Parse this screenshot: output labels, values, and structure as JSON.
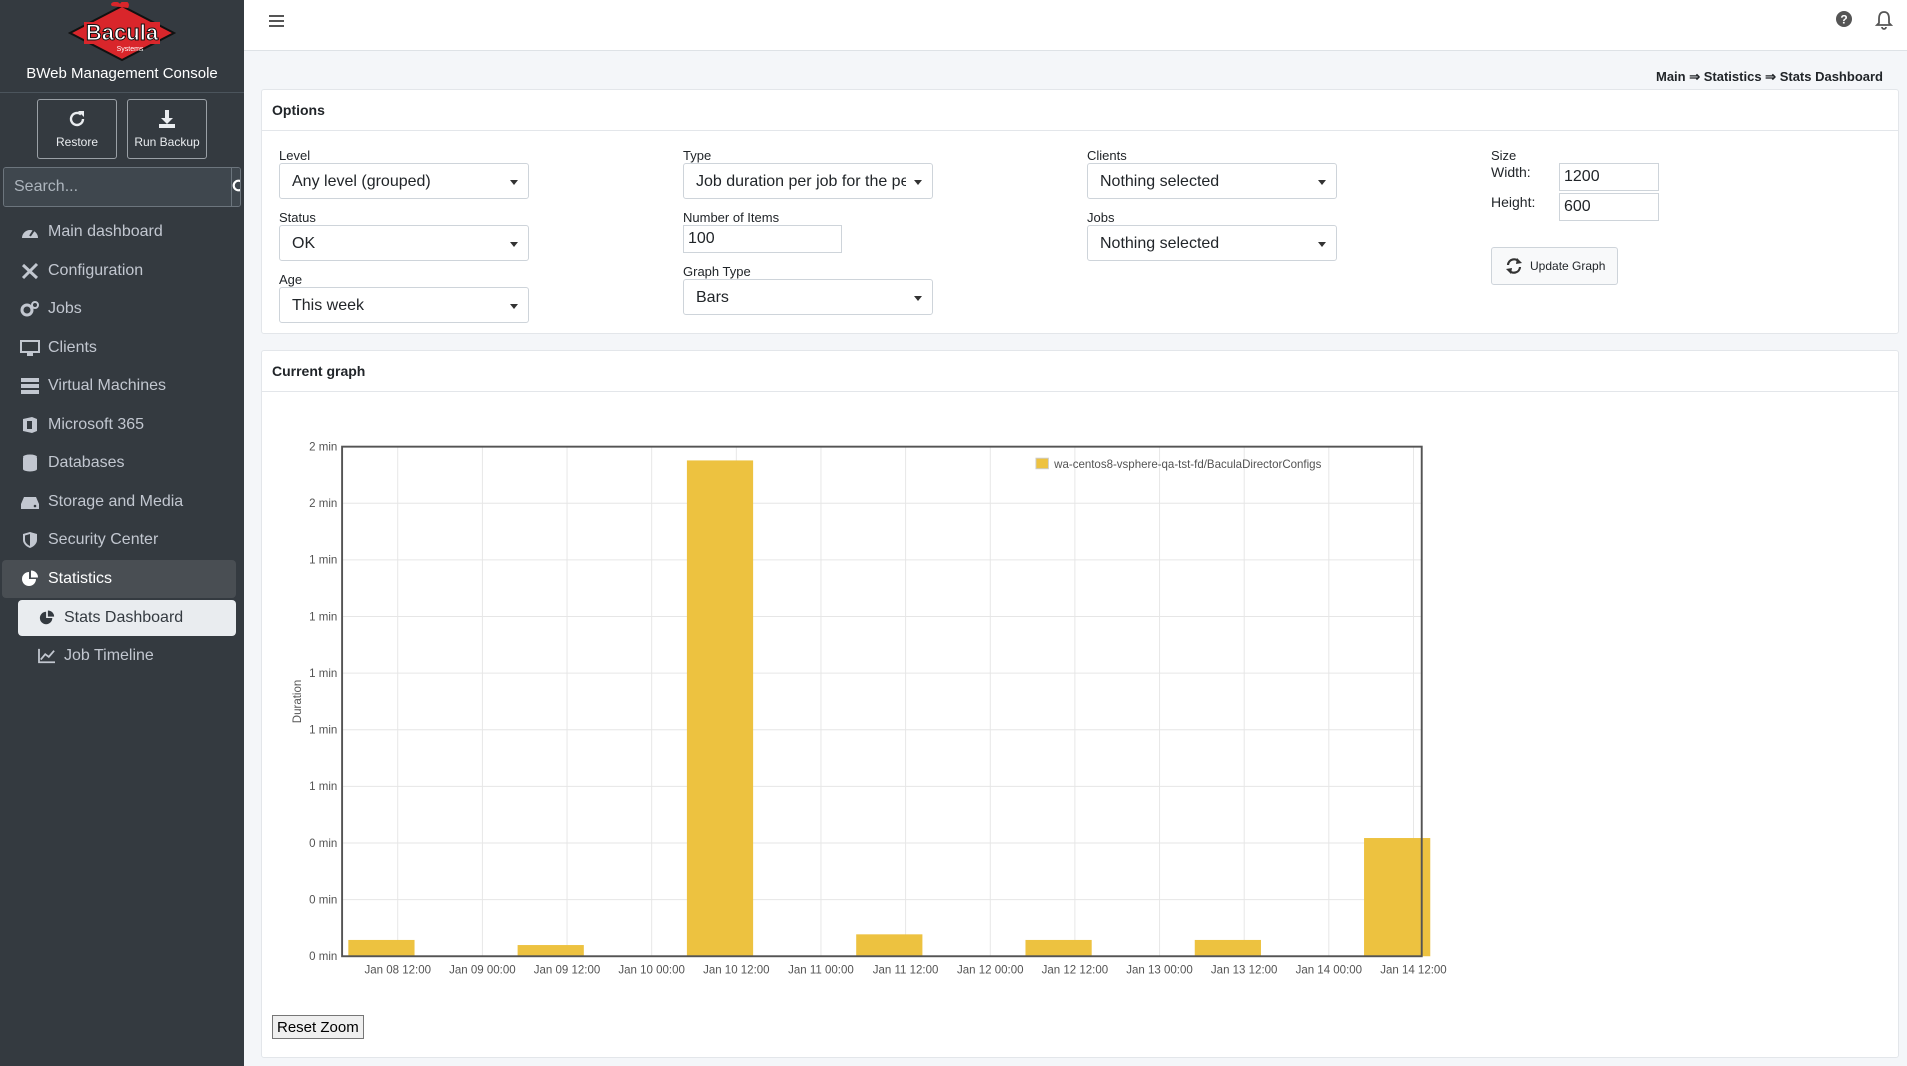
{
  "app": {
    "logo_text": "Bacula",
    "logo_sub": "Systems",
    "console_title": "BWeb Management Console"
  },
  "actions": {
    "restore": "Restore",
    "run_backup": "Run Backup"
  },
  "search": {
    "placeholder": "Search..."
  },
  "nav": {
    "main_dashboard": "Main dashboard",
    "configuration": "Configuration",
    "jobs": "Jobs",
    "clients": "Clients",
    "virtual_machines": "Virtual Machines",
    "microsoft365": "Microsoft 365",
    "databases": "Databases",
    "storage": "Storage and Media",
    "security": "Security Center",
    "statistics": "Statistics",
    "stats_dashboard": "Stats Dashboard",
    "job_timeline": "Job Timeline"
  },
  "breadcrumb": {
    "main": "Main",
    "sep": " ⇒ ",
    "statistics": "Statistics",
    "current": "Stats Dashboard"
  },
  "options": {
    "title": "Options",
    "level_label": "Level",
    "level_value": "Any level (grouped)",
    "status_label": "Status",
    "status_value": "OK",
    "age_label": "Age",
    "age_value": "This week",
    "type_label": "Type",
    "type_value": "Job duration per job for the period",
    "items_label": "Number of Items",
    "items_value": "100",
    "graph_type_label": "Graph Type",
    "graph_type_value": "Bars",
    "clients_label": "Clients",
    "clients_value": "Nothing selected",
    "jobs_label": "Jobs",
    "jobs_value": "Nothing selected",
    "size_label": "Size",
    "width_label": "Width:",
    "width_value": "1200",
    "height_label": "Height:",
    "height_value": "600",
    "update_label": "Update Graph"
  },
  "graph": {
    "title": "Current graph",
    "reset_label": "Reset Zoom"
  },
  "colors": {
    "bar": "#edc240",
    "sidebar": "#343a40"
  },
  "chart_data": {
    "type": "bar",
    "ylabel": "Duration",
    "y_ticks": [
      "0 min",
      "0 min",
      "0 min",
      "1 min",
      "1 min",
      "1 min",
      "1 min",
      "1 min",
      "2 min",
      "2 min"
    ],
    "ylim": [
      0,
      100
    ],
    "x_ticks": [
      "Jan 08 12:00",
      "Jan 09 00:00",
      "Jan 09 12:00",
      "Jan 10 00:00",
      "Jan 10 12:00",
      "Jan 11 00:00",
      "Jan 11 12:00",
      "Jan 12 00:00",
      "Jan 12 12:00",
      "Jan 13 00:00",
      "Jan 13 12:00",
      "Jan 14 00:00",
      "Jan 14 12:00"
    ],
    "grid": true,
    "legend_position": "top-right",
    "series": [
      {
        "name": "wa-centos8-vsphere-qa-tst-fd/BaculaDirectorConfigs",
        "color": "#edc240",
        "points": [
          {
            "x": "Jan 08 12:00",
            "y": 3.2
          },
          {
            "x": "Jan 09 12:00",
            "y": 2.2
          },
          {
            "x": "Jan 10 12:00",
            "y": 97.3
          },
          {
            "x": "Jan 11 12:00",
            "y": 4.3
          },
          {
            "x": "Jan 12 12:00",
            "y": 3.2
          },
          {
            "x": "Jan 13 12:00",
            "y": 3.2
          },
          {
            "x": "Jan 14 12:00",
            "y": 23.2
          }
        ]
      }
    ]
  }
}
